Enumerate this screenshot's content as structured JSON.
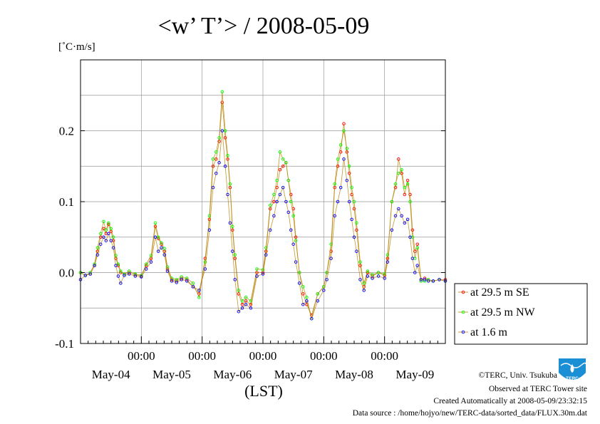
{
  "colors": {
    "series_se": "#ff0000",
    "series_nw": "#00ff00",
    "series_low": "#0000ff",
    "series_line": "#b8860b",
    "grid": "#999999",
    "logo": "#1a8fd6"
  },
  "credits": {
    "copyright": "©TERC, Univ. Tsukuba",
    "observed": "Observed at TERC Tower site",
    "created": "Created Automatically at 2008-05-09/23:32:15",
    "source": "Data source : /home/hojyo/new/TERC-data/sorted_data/FLUX.30m.dat"
  },
  "logo": {
    "text": "TERC"
  },
  "chart_data": {
    "type": "line",
    "title": "<w’ T’> / 2008-05-09",
    "ylabel": "[˚C·m/s]",
    "xlabel": "(LST)",
    "ylim": [
      -0.1,
      0.3
    ],
    "yticks": [
      -0.1,
      0.0,
      0.1,
      0.2
    ],
    "ytick_labels": [
      "-0.1",
      "0.0",
      "0.1",
      "0.2"
    ],
    "xlim": [
      0,
      6
    ],
    "x_units": "days since start of May-03 (LST)",
    "xticks_time": [
      1,
      2,
      3,
      4,
      5
    ],
    "xtick_time_labels": [
      "00:00",
      "00:00",
      "00:00",
      "00:00",
      "00:00"
    ],
    "xticks_date": [
      0.5,
      1.5,
      2.5,
      3.5,
      4.5,
      5.5
    ],
    "xtick_date_labels": [
      "May-04",
      "May-05",
      "May-06",
      "May-07",
      "May-08",
      "May-09"
    ],
    "grid": true,
    "legend_position": "right, below plot",
    "series": [
      {
        "name": "at 29.5 m SE",
        "color": "#ff0000",
        "x": [
          0.0,
          0.08,
          0.16,
          0.23,
          0.28,
          0.33,
          0.38,
          0.42,
          0.46,
          0.5,
          0.54,
          0.58,
          0.62,
          0.66,
          0.72,
          0.8,
          0.9,
          1.0,
          1.08,
          1.16,
          1.23,
          1.28,
          1.33,
          1.38,
          1.43,
          1.5,
          1.58,
          1.66,
          1.75,
          1.85,
          1.95,
          2.05,
          2.12,
          2.18,
          2.23,
          2.28,
          2.33,
          2.38,
          2.42,
          2.46,
          2.5,
          2.54,
          2.6,
          2.66,
          2.72,
          2.8,
          2.9,
          3.0,
          3.05,
          3.12,
          3.18,
          3.23,
          3.28,
          3.33,
          3.38,
          3.42,
          3.46,
          3.5,
          3.54,
          3.6,
          3.66,
          3.72,
          3.8,
          3.9,
          4.0,
          4.05,
          4.12,
          4.18,
          4.23,
          4.28,
          4.33,
          4.38,
          4.42,
          4.46,
          4.5,
          4.54,
          4.6,
          4.66,
          4.72,
          4.8,
          4.9,
          5.0,
          5.05,
          5.12,
          5.18,
          5.23,
          5.28,
          5.33,
          5.38,
          5.42,
          5.46,
          5.5,
          5.54,
          5.6,
          5.66,
          5.72,
          5.8,
          5.9,
          6.0
        ],
        "y": [
          0.0,
          -0.004,
          -0.002,
          0.01,
          0.03,
          0.05,
          0.062,
          0.055,
          0.068,
          0.058,
          0.045,
          0.02,
          0.01,
          0.0,
          -0.002,
          0.0,
          -0.003,
          -0.005,
          0.01,
          0.02,
          0.065,
          0.048,
          0.04,
          0.03,
          0.005,
          -0.01,
          -0.012,
          -0.008,
          -0.01,
          -0.02,
          -0.03,
          0.02,
          0.075,
          0.15,
          0.16,
          0.185,
          0.24,
          0.19,
          0.16,
          0.12,
          0.06,
          0.02,
          -0.03,
          -0.045,
          -0.04,
          -0.045,
          0.0,
          0.0,
          0.03,
          0.09,
          0.1,
          0.12,
          0.145,
          0.15,
          0.155,
          0.13,
          0.11,
          0.09,
          0.05,
          0.0,
          -0.03,
          -0.045,
          -0.06,
          -0.03,
          -0.02,
          0.0,
          0.03,
          0.12,
          0.15,
          0.17,
          0.21,
          0.17,
          0.14,
          0.11,
          0.09,
          0.06,
          0.01,
          -0.02,
          0.0,
          -0.005,
          0.0,
          -0.004,
          0.02,
          0.1,
          0.12,
          0.16,
          0.14,
          0.11,
          0.13,
          0.11,
          0.06,
          0.03,
          0.04,
          -0.01,
          -0.008,
          -0.01,
          -0.012,
          -0.01,
          -0.01
        ]
      },
      {
        "name": "at 29.5 m NW",
        "color": "#00ff00",
        "x": [
          0.0,
          0.08,
          0.16,
          0.23,
          0.28,
          0.33,
          0.38,
          0.42,
          0.46,
          0.5,
          0.54,
          0.58,
          0.62,
          0.66,
          0.72,
          0.8,
          0.9,
          1.0,
          1.08,
          1.16,
          1.23,
          1.28,
          1.33,
          1.38,
          1.43,
          1.5,
          1.58,
          1.66,
          1.75,
          1.85,
          1.95,
          2.05,
          2.12,
          2.18,
          2.23,
          2.28,
          2.33,
          2.38,
          2.42,
          2.46,
          2.5,
          2.54,
          2.6,
          2.66,
          2.72,
          2.8,
          2.9,
          3.0,
          3.05,
          3.12,
          3.18,
          3.23,
          3.28,
          3.33,
          3.38,
          3.42,
          3.46,
          3.5,
          3.54,
          3.6,
          3.66,
          3.72,
          3.8,
          3.9,
          4.0,
          4.05,
          4.12,
          4.18,
          4.23,
          4.28,
          4.33,
          4.38,
          4.42,
          4.46,
          4.5,
          4.54,
          4.6,
          4.66,
          4.72,
          4.8,
          4.9,
          5.0,
          5.05,
          5.12,
          5.18,
          5.23,
          5.28,
          5.33,
          5.38,
          5.42,
          5.46,
          5.5,
          5.54,
          5.6,
          5.66,
          5.72,
          5.8,
          5.9,
          6.0
        ],
        "y": [
          0.0,
          -0.004,
          0.0,
          0.012,
          0.035,
          0.055,
          0.072,
          0.06,
          0.07,
          0.062,
          0.05,
          0.024,
          0.012,
          0.002,
          -0.002,
          0.002,
          -0.002,
          -0.004,
          0.012,
          0.024,
          0.07,
          0.05,
          0.042,
          0.034,
          0.008,
          -0.008,
          -0.01,
          -0.006,
          -0.008,
          -0.015,
          -0.035,
          0.015,
          0.08,
          0.16,
          0.17,
          0.19,
          0.255,
          0.2,
          0.165,
          0.125,
          0.065,
          0.025,
          -0.025,
          -0.04,
          -0.035,
          -0.04,
          0.005,
          0.004,
          0.035,
          0.095,
          0.11,
          0.13,
          0.17,
          0.16,
          0.155,
          0.13,
          0.1,
          0.08,
          0.045,
          0.0,
          -0.02,
          -0.035,
          -0.065,
          -0.03,
          -0.02,
          0.0,
          0.04,
          0.125,
          0.16,
          0.18,
          0.2,
          0.175,
          0.15,
          0.12,
          0.1,
          0.07,
          0.015,
          -0.015,
          0.002,
          -0.003,
          0.0,
          -0.002,
          0.025,
          0.1,
          0.125,
          0.14,
          0.145,
          0.12,
          0.125,
          0.1,
          0.05,
          0.02,
          0.035,
          -0.012,
          -0.012,
          -0.01,
          -0.012,
          -0.01,
          -0.012
        ]
      },
      {
        "name": "at 1.6 m",
        "color": "#0000ff",
        "x": [
          0.0,
          0.08,
          0.16,
          0.23,
          0.28,
          0.33,
          0.38,
          0.42,
          0.46,
          0.5,
          0.54,
          0.58,
          0.62,
          0.66,
          0.72,
          0.8,
          0.9,
          1.0,
          1.08,
          1.16,
          1.23,
          1.28,
          1.33,
          1.38,
          1.43,
          1.5,
          1.58,
          1.66,
          1.75,
          1.85,
          1.95,
          2.05,
          2.12,
          2.18,
          2.23,
          2.28,
          2.33,
          2.38,
          2.42,
          2.46,
          2.5,
          2.54,
          2.6,
          2.66,
          2.72,
          2.8,
          2.9,
          3.0,
          3.05,
          3.12,
          3.18,
          3.23,
          3.28,
          3.33,
          3.38,
          3.42,
          3.46,
          3.5,
          3.54,
          3.6,
          3.66,
          3.72,
          3.8,
          3.9,
          4.0,
          4.05,
          4.12,
          4.18,
          4.23,
          4.28,
          4.33,
          4.38,
          4.42,
          4.46,
          4.5,
          4.54,
          4.6,
          4.66,
          4.72,
          4.8,
          4.9,
          5.0,
          5.05,
          5.12,
          5.18,
          5.23,
          5.28,
          5.33,
          5.38,
          5.42,
          5.46,
          5.5,
          5.54,
          5.6,
          5.66,
          5.72,
          5.8,
          5.9,
          6.0
        ],
        "y": [
          -0.01,
          -0.004,
          -0.002,
          0.01,
          0.025,
          0.04,
          0.05,
          0.045,
          0.055,
          0.045,
          0.035,
          0.01,
          -0.005,
          -0.015,
          -0.004,
          -0.002,
          -0.005,
          -0.006,
          0.005,
          0.015,
          0.05,
          0.03,
          0.035,
          0.025,
          0.002,
          -0.012,
          -0.014,
          -0.01,
          -0.012,
          -0.02,
          -0.025,
          0.005,
          0.06,
          0.12,
          0.14,
          0.155,
          0.2,
          0.15,
          0.11,
          0.07,
          0.03,
          -0.01,
          -0.055,
          -0.05,
          -0.045,
          -0.05,
          -0.005,
          -0.002,
          0.025,
          0.06,
          0.08,
          0.1,
          0.11,
          0.12,
          0.1,
          0.085,
          0.06,
          0.04,
          0.015,
          -0.015,
          -0.045,
          -0.04,
          -0.065,
          -0.04,
          -0.025,
          -0.01,
          0.02,
          0.08,
          0.1,
          0.12,
          0.16,
          0.13,
          0.1,
          0.075,
          0.05,
          0.03,
          -0.01,
          -0.025,
          -0.005,
          -0.008,
          -0.005,
          -0.008,
          0.015,
          0.06,
          0.08,
          0.09,
          0.08,
          0.07,
          0.075,
          0.05,
          0.02,
          0.0,
          0.01,
          -0.01,
          -0.01,
          -0.012,
          -0.012,
          -0.01,
          -0.012
        ]
      }
    ]
  }
}
